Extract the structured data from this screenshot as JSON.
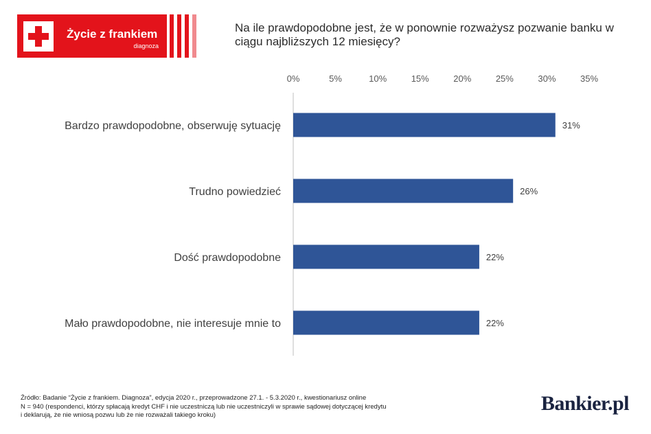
{
  "logo": {
    "title": "Życie z frankiem",
    "subtitle": "diagnoza",
    "cross_icon": "swiss-cross-icon",
    "color": "#e3131b"
  },
  "brand": "Bankier.pl",
  "footnote": {
    "source": "Źródło: Badanie “Życie z frankiem. Diagnoza”, edycja 2020 r., przeprowadzone 27.1. - 5.3.2020 r., kwestionariusz online",
    "n_line1": "N = 940  (respondenci, którzy spłacają kredyt CHF i nie uczestniczą lub nie uczestniczyli w sprawie sądowej dotyczącej kredytu",
    "n_line2": "i deklarują, że nie wniosą pozwu lub że nie rozważali takiego kroku)"
  },
  "chart_data": {
    "type": "bar",
    "orientation": "horizontal",
    "title": "Na ile prawdopodobne jest, że w ponownie rozważysz pozwanie banku w ciągu najbliższych 12 miesięcy?",
    "categories": [
      "Bardzo prawdopodobne, obserwuję sytuację",
      "Trudno powiedzieć",
      "Dość prawdopodobne",
      "Mało prawdopodobne, nie interesuje mnie to"
    ],
    "values": [
      31,
      26,
      22,
      22
    ],
    "data_labels": [
      "31%",
      "26%",
      "22%",
      "22%"
    ],
    "x_ticks": [
      "0%",
      "5%",
      "10%",
      "15%",
      "20%",
      "25%",
      "30%",
      "35%"
    ],
    "xlim": [
      0,
      35
    ],
    "x_axis_position": "top",
    "grid": false,
    "legend": "none",
    "bar_color": "#2f5597"
  }
}
